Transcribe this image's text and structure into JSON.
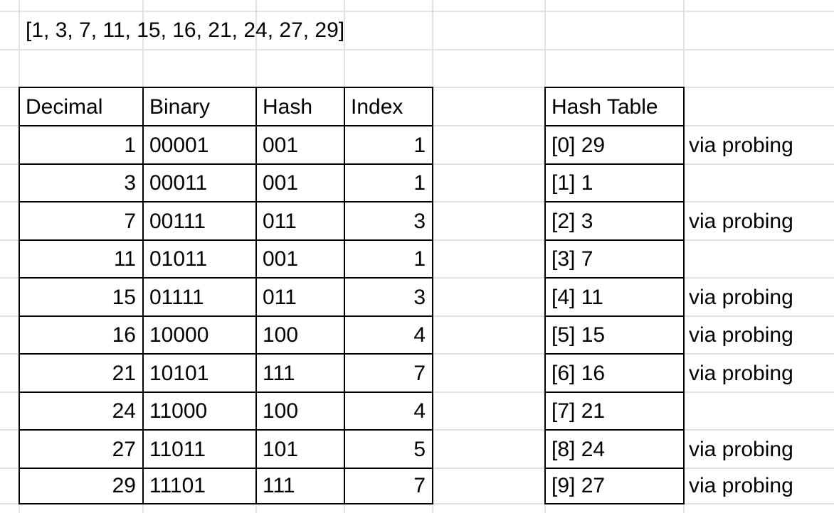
{
  "list_text": "[1, 3, 7, 11, 15, 16, 21, 24, 27, 29]",
  "headers": {
    "decimal": "Decimal",
    "binary": "Binary",
    "hash": "Hash",
    "index": "Index",
    "hash_table": "Hash Table"
  },
  "rows": [
    {
      "decimal": "1",
      "binary": "00001",
      "hash": "001",
      "index": "1",
      "slot": "[0] 29",
      "note": "via probing"
    },
    {
      "decimal": "3",
      "binary": "00011",
      "hash": "001",
      "index": "1",
      "slot": "[1] 1",
      "note": ""
    },
    {
      "decimal": "7",
      "binary": "00111",
      "hash": "011",
      "index": "3",
      "slot": "[2] 3",
      "note": "via probing"
    },
    {
      "decimal": "11",
      "binary": "01011",
      "hash": "001",
      "index": "1",
      "slot": "[3] 7",
      "note": ""
    },
    {
      "decimal": "15",
      "binary": "01111",
      "hash": "011",
      "index": "3",
      "slot": "[4] 11",
      "note": "via probing"
    },
    {
      "decimal": "16",
      "binary": "10000",
      "hash": "100",
      "index": "4",
      "slot": "[5] 15",
      "note": "via probing"
    },
    {
      "decimal": "21",
      "binary": "10101",
      "hash": "111",
      "index": "7",
      "slot": "[6] 16",
      "note": "via probing"
    },
    {
      "decimal": "24",
      "binary": "11000",
      "hash": "100",
      "index": "4",
      "slot": "[7] 21",
      "note": ""
    },
    {
      "decimal": "27",
      "binary": "11011",
      "hash": "101",
      "index": "5",
      "slot": "[8] 24",
      "note": "via probing"
    },
    {
      "decimal": "29",
      "binary": "11101",
      "hash": "111",
      "index": "7",
      "slot": "[9] 27",
      "note": "via probing"
    }
  ]
}
